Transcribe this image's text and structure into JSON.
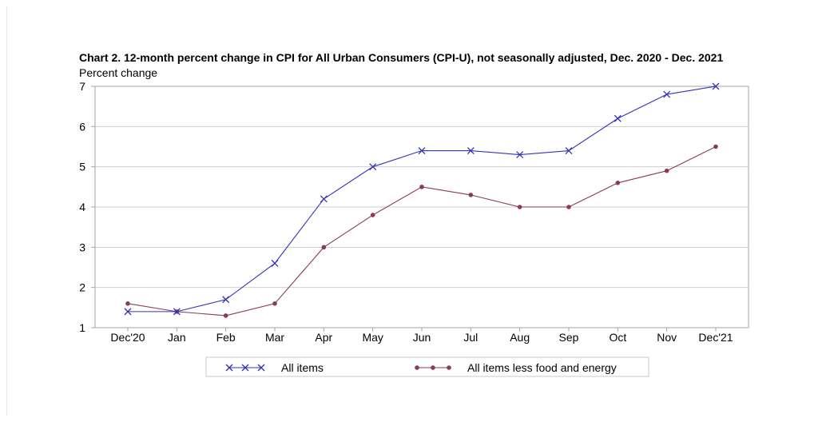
{
  "chart_data": {
    "type": "line",
    "title": "Chart 2. 12-month percent change in CPI for All Urban Consumers (CPI-U), not seasonally adjusted, Dec. 2020 - Dec. 2021",
    "ylabel": "Percent change",
    "xlabel": "",
    "ylim": [
      1,
      7
    ],
    "yticks": [
      1,
      2,
      3,
      4,
      5,
      6,
      7
    ],
    "grid": true,
    "legend_position": "bottom",
    "categories": [
      "Dec'20",
      "Jan",
      "Feb",
      "Mar",
      "Apr",
      "May",
      "Jun",
      "Jul",
      "Aug",
      "Sep",
      "Oct",
      "Nov",
      "Dec'21"
    ],
    "series": [
      {
        "name": "All items",
        "marker": "x",
        "color": "#3333bb",
        "values": [
          1.4,
          1.4,
          1.7,
          2.6,
          4.2,
          5.0,
          5.4,
          5.4,
          5.3,
          5.4,
          6.2,
          6.8,
          7.0
        ]
      },
      {
        "name": "All items less food and energy",
        "marker": "dot",
        "color": "#8b3a5a",
        "values": [
          1.6,
          1.4,
          1.3,
          1.6,
          3.0,
          3.8,
          4.5,
          4.3,
          4.0,
          4.0,
          4.6,
          4.9,
          5.5
        ]
      }
    ]
  }
}
